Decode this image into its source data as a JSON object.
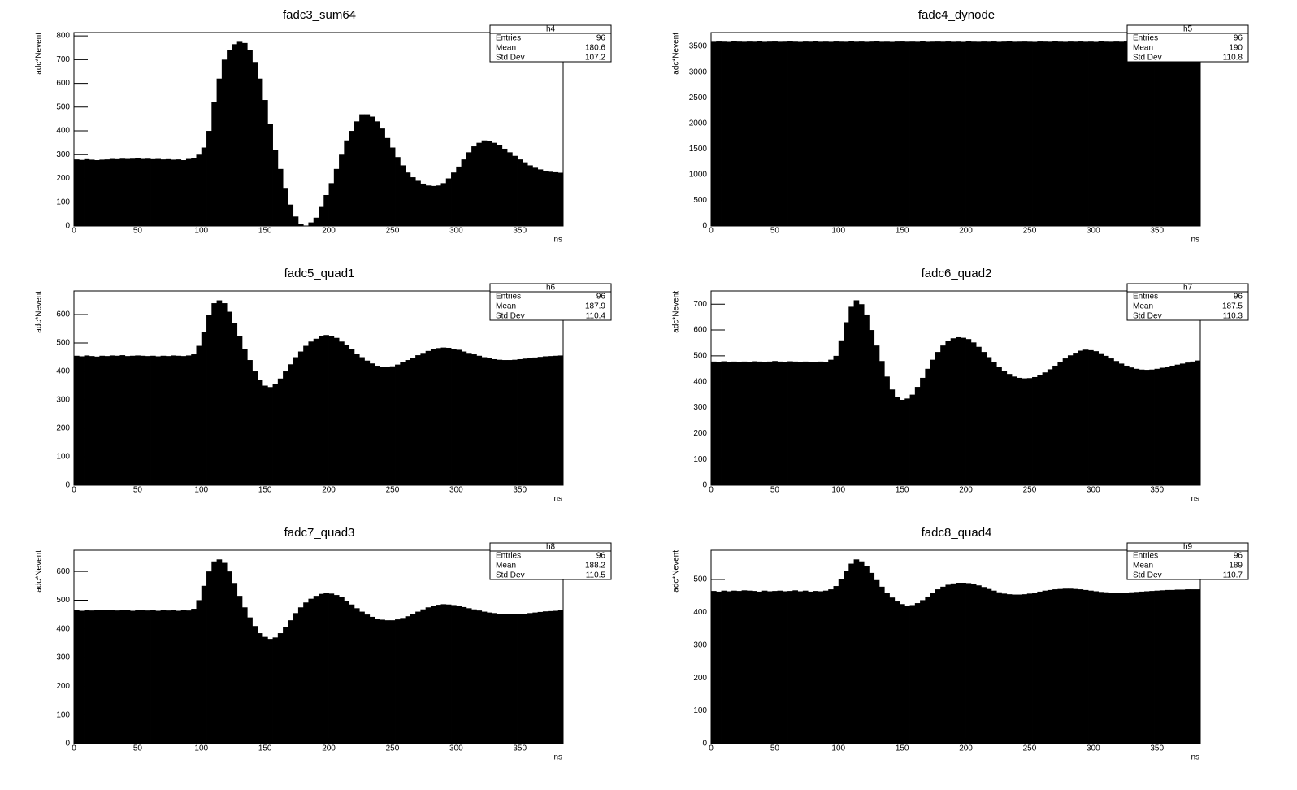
{
  "chart_data": [
    {
      "type": "histogram",
      "title": "fadc3_sum64",
      "xlabel": "ns",
      "ylabel": "adc*Nevent",
      "color": "#000000",
      "bins": [
        0,
        4,
        8,
        12,
        16,
        20,
        24,
        28,
        32,
        36,
        40,
        44,
        48,
        52,
        56,
        60,
        64,
        68,
        72,
        76,
        80,
        84,
        88,
        92,
        96,
        100,
        104,
        108,
        112,
        116,
        120,
        124,
        128,
        132,
        136,
        140,
        144,
        148,
        152,
        156,
        160,
        164,
        168,
        172,
        176,
        180,
        184,
        188,
        192,
        196,
        200,
        204,
        208,
        212,
        216,
        220,
        224,
        228,
        232,
        236,
        240,
        244,
        248,
        252,
        256,
        260,
        264,
        268,
        272,
        276,
        280,
        284,
        288,
        292,
        296,
        300,
        304,
        308,
        312,
        316,
        320,
        324,
        328,
        332,
        336,
        340,
        344,
        348,
        352,
        356,
        360,
        364,
        368,
        372,
        376,
        380,
        384
      ],
      "values": [
        280,
        278,
        281,
        279,
        277,
        279,
        280,
        282,
        281,
        283,
        282,
        283,
        284,
        282,
        283,
        281,
        282,
        280,
        281,
        279,
        280,
        277,
        282,
        285,
        300,
        330,
        400,
        520,
        620,
        700,
        740,
        765,
        775,
        770,
        740,
        690,
        620,
        530,
        430,
        320,
        240,
        160,
        90,
        40,
        10,
        0,
        15,
        35,
        80,
        130,
        180,
        240,
        300,
        360,
        400,
        440,
        470,
        470,
        460,
        440,
        410,
        370,
        330,
        290,
        255,
        225,
        205,
        190,
        178,
        170,
        168,
        170,
        180,
        200,
        225,
        250,
        280,
        310,
        335,
        350,
        360,
        358,
        350,
        340,
        325,
        310,
        295,
        280,
        268,
        255,
        245,
        238,
        232,
        228,
        226,
        224
      ],
      "xlim": [
        0,
        384
      ],
      "xticks": [
        0,
        50,
        100,
        150,
        200,
        250,
        300,
        350
      ],
      "ylim": [
        0,
        814
      ],
      "yticks": [
        0,
        100,
        200,
        300,
        400,
        500,
        600,
        700,
        800
      ],
      "stats": {
        "title": "h4",
        "labels": [
          "Entries",
          "Mean",
          "Std Dev"
        ],
        "values": [
          96,
          180.6,
          107.2
        ]
      }
    },
    {
      "type": "histogram",
      "title": "fadc4_dynode",
      "xlabel": "ns",
      "ylabel": "adc*Nevent",
      "color": "#000000",
      "bins": [
        0,
        4,
        8,
        12,
        16,
        20,
        24,
        28,
        32,
        36,
        40,
        44,
        48,
        52,
        56,
        60,
        64,
        68,
        72,
        76,
        80,
        84,
        88,
        92,
        96,
        100,
        104,
        108,
        112,
        116,
        120,
        124,
        128,
        132,
        136,
        140,
        144,
        148,
        152,
        156,
        160,
        164,
        168,
        172,
        176,
        180,
        184,
        188,
        192,
        196,
        200,
        204,
        208,
        212,
        216,
        220,
        224,
        228,
        232,
        236,
        240,
        244,
        248,
        252,
        256,
        260,
        264,
        268,
        272,
        276,
        280,
        284,
        288,
        292,
        296,
        300,
        304,
        308,
        312,
        316,
        320,
        324,
        328,
        332,
        336,
        340,
        344,
        348,
        352,
        356,
        360,
        364,
        368,
        372,
        376,
        380,
        384
      ],
      "values": [
        3590,
        3595,
        3592,
        3588,
        3596,
        3593,
        3590,
        3594,
        3591,
        3597,
        3589,
        3593,
        3595,
        3590,
        3592,
        3596,
        3592,
        3588,
        3594,
        3591,
        3596,
        3590,
        3593,
        3589,
        3595,
        3592,
        3590,
        3596,
        3591,
        3594,
        3589,
        3593,
        3596,
        3590,
        3592,
        3588,
        3594,
        3595,
        3591,
        3593,
        3590,
        3596,
        3589,
        3592,
        3594,
        3591,
        3595,
        3590,
        3593,
        3588,
        3596,
        3592,
        3590,
        3594,
        3591,
        3595,
        3589,
        3593,
        3596,
        3590,
        3592,
        3594,
        3591,
        3588,
        3595,
        3593,
        3590,
        3596,
        3592,
        3589,
        3594,
        3591,
        3595,
        3590,
        3593,
        3588,
        3596,
        3592,
        3590,
        3594,
        3591,
        3595,
        3589,
        3593,
        3596,
        3590,
        3592,
        3594,
        3591,
        3588,
        3595,
        3593,
        3590,
        3596,
        3592,
        3591
      ],
      "xlim": [
        0,
        384
      ],
      "xticks": [
        0,
        50,
        100,
        150,
        200,
        250,
        300,
        350
      ],
      "ylim": [
        0,
        3770
      ],
      "yticks": [
        0,
        500,
        1000,
        1500,
        2000,
        2500,
        3000,
        3500
      ],
      "stats": {
        "title": "h5",
        "labels": [
          "Entries",
          "Mean",
          "Std Dev"
        ],
        "values": [
          96,
          190,
          110.8
        ]
      }
    },
    {
      "type": "histogram",
      "title": "fadc5_quad1",
      "xlabel": "ns",
      "ylabel": "adc*Nevent",
      "color": "#000000",
      "bins": [
        0,
        4,
        8,
        12,
        16,
        20,
        24,
        28,
        32,
        36,
        40,
        44,
        48,
        52,
        56,
        60,
        64,
        68,
        72,
        76,
        80,
        84,
        88,
        92,
        96,
        100,
        104,
        108,
        112,
        116,
        120,
        124,
        128,
        132,
        136,
        140,
        144,
        148,
        152,
        156,
        160,
        164,
        168,
        172,
        176,
        180,
        184,
        188,
        192,
        196,
        200,
        204,
        208,
        212,
        216,
        220,
        224,
        228,
        232,
        236,
        240,
        244,
        248,
        252,
        256,
        260,
        264,
        268,
        272,
        276,
        280,
        284,
        288,
        292,
        296,
        300,
        304,
        308,
        312,
        316,
        320,
        324,
        328,
        332,
        336,
        340,
        344,
        348,
        352,
        356,
        360,
        364,
        368,
        372,
        376,
        380,
        384
      ],
      "values": [
        455,
        453,
        456,
        454,
        452,
        455,
        454,
        456,
        455,
        457,
        454,
        455,
        456,
        455,
        454,
        455,
        453,
        455,
        454,
        456,
        455,
        454,
        456,
        460,
        490,
        540,
        600,
        640,
        650,
        640,
        610,
        570,
        525,
        480,
        440,
        400,
        370,
        350,
        345,
        355,
        375,
        400,
        425,
        450,
        470,
        490,
        505,
        515,
        525,
        528,
        525,
        518,
        505,
        492,
        478,
        462,
        450,
        438,
        428,
        420,
        416,
        415,
        418,
        424,
        432,
        440,
        448,
        457,
        465,
        472,
        478,
        482,
        484,
        483,
        480,
        476,
        470,
        465,
        460,
        455,
        450,
        446,
        443,
        441,
        440,
        440,
        441,
        443,
        445,
        447,
        449,
        451,
        453,
        454,
        455,
        456
      ],
      "xlim": [
        0,
        384
      ],
      "xticks": [
        0,
        50,
        100,
        150,
        200,
        250,
        300,
        350
      ],
      "ylim": [
        0,
        683
      ],
      "yticks": [
        0,
        100,
        200,
        300,
        400,
        500,
        600
      ],
      "stats": {
        "title": "h6",
        "labels": [
          "Entries",
          "Mean",
          "Std Dev"
        ],
        "values": [
          96,
          187.9,
          110.4
        ]
      }
    },
    {
      "type": "histogram",
      "title": "fadc6_quad2",
      "xlabel": "ns",
      "ylabel": "adc*Nevent",
      "color": "#000000",
      "bins": [
        0,
        4,
        8,
        12,
        16,
        20,
        24,
        28,
        32,
        36,
        40,
        44,
        48,
        52,
        56,
        60,
        64,
        68,
        72,
        76,
        80,
        84,
        88,
        92,
        96,
        100,
        104,
        108,
        112,
        116,
        120,
        124,
        128,
        132,
        136,
        140,
        144,
        148,
        152,
        156,
        160,
        164,
        168,
        172,
        176,
        180,
        184,
        188,
        192,
        196,
        200,
        204,
        208,
        212,
        216,
        220,
        224,
        228,
        232,
        236,
        240,
        244,
        248,
        252,
        256,
        260,
        264,
        268,
        272,
        276,
        280,
        284,
        288,
        292,
        296,
        300,
        304,
        308,
        312,
        316,
        320,
        324,
        328,
        332,
        336,
        340,
        344,
        348,
        352,
        356,
        360,
        364,
        368,
        372,
        376,
        380,
        384
      ],
      "values": [
        478,
        476,
        479,
        477,
        478,
        476,
        478,
        477,
        479,
        478,
        477,
        478,
        480,
        478,
        477,
        479,
        478,
        476,
        478,
        477,
        475,
        478,
        476,
        485,
        500,
        560,
        630,
        690,
        715,
        700,
        660,
        600,
        540,
        480,
        420,
        370,
        340,
        330,
        335,
        350,
        380,
        415,
        450,
        485,
        515,
        540,
        558,
        568,
        572,
        570,
        565,
        552,
        535,
        515,
        495,
        475,
        458,
        442,
        430,
        420,
        415,
        413,
        414,
        418,
        426,
        436,
        448,
        462,
        476,
        490,
        502,
        512,
        520,
        524,
        522,
        518,
        510,
        500,
        490,
        480,
        470,
        462,
        455,
        450,
        447,
        446,
        447,
        450,
        454,
        458,
        462,
        466,
        470,
        474,
        478,
        482
      ],
      "xlim": [
        0,
        384
      ],
      "xticks": [
        0,
        50,
        100,
        150,
        200,
        250,
        300,
        350
      ],
      "ylim": [
        0,
        751
      ],
      "yticks": [
        0,
        100,
        200,
        300,
        400,
        500,
        600,
        700
      ],
      "stats": {
        "title": "h7",
        "labels": [
          "Entries",
          "Mean",
          "Std Dev"
        ],
        "values": [
          96,
          187.5,
          110.3
        ]
      }
    },
    {
      "type": "histogram",
      "title": "fadc7_quad3",
      "xlabel": "ns",
      "ylabel": "adc*Nevent",
      "color": "#000000",
      "bins": [
        0,
        4,
        8,
        12,
        16,
        20,
        24,
        28,
        32,
        36,
        40,
        44,
        48,
        52,
        56,
        60,
        64,
        68,
        72,
        76,
        80,
        84,
        88,
        92,
        96,
        100,
        104,
        108,
        112,
        116,
        120,
        124,
        128,
        132,
        136,
        140,
        144,
        148,
        152,
        156,
        160,
        164,
        168,
        172,
        176,
        180,
        184,
        188,
        192,
        196,
        200,
        204,
        208,
        212,
        216,
        220,
        224,
        228,
        232,
        236,
        240,
        244,
        248,
        252,
        256,
        260,
        264,
        268,
        272,
        276,
        280,
        284,
        288,
        292,
        296,
        300,
        304,
        308,
        312,
        316,
        320,
        324,
        328,
        332,
        336,
        340,
        344,
        348,
        352,
        356,
        360,
        364,
        368,
        372,
        376,
        380,
        384
      ],
      "values": [
        465,
        463,
        466,
        464,
        465,
        467,
        466,
        465,
        464,
        466,
        465,
        463,
        465,
        466,
        464,
        465,
        463,
        466,
        464,
        465,
        463,
        466,
        464,
        470,
        500,
        550,
        600,
        635,
        642,
        630,
        600,
        560,
        515,
        475,
        440,
        410,
        385,
        372,
        365,
        370,
        385,
        405,
        430,
        455,
        475,
        492,
        505,
        515,
        522,
        525,
        523,
        518,
        510,
        498,
        485,
        472,
        460,
        450,
        442,
        436,
        432,
        430,
        430,
        433,
        438,
        444,
        452,
        460,
        468,
        475,
        480,
        484,
        486,
        485,
        483,
        480,
        476,
        472,
        468,
        464,
        460,
        457,
        455,
        453,
        452,
        451,
        451,
        452,
        453,
        455,
        457,
        459,
        461,
        462,
        463,
        465
      ],
      "xlim": [
        0,
        384
      ],
      "xticks": [
        0,
        50,
        100,
        150,
        200,
        250,
        300,
        350
      ],
      "ylim": [
        0,
        674
      ],
      "yticks": [
        0,
        100,
        200,
        300,
        400,
        500,
        600
      ],
      "stats": {
        "title": "h8",
        "labels": [
          "Entries",
          "Mean",
          "Std Dev"
        ],
        "values": [
          96,
          188.2,
          110.5
        ]
      }
    },
    {
      "type": "histogram",
      "title": "fadc8_quad4",
      "xlabel": "ns",
      "ylabel": "adc*Nevent",
      "color": "#000000",
      "bins": [
        0,
        4,
        8,
        12,
        16,
        20,
        24,
        28,
        32,
        36,
        40,
        44,
        48,
        52,
        56,
        60,
        64,
        68,
        72,
        76,
        80,
        84,
        88,
        92,
        96,
        100,
        104,
        108,
        112,
        116,
        120,
        124,
        128,
        132,
        136,
        140,
        144,
        148,
        152,
        156,
        160,
        164,
        168,
        172,
        176,
        180,
        184,
        188,
        192,
        196,
        200,
        204,
        208,
        212,
        216,
        220,
        224,
        228,
        232,
        236,
        240,
        244,
        248,
        252,
        256,
        260,
        264,
        268,
        272,
        276,
        280,
        284,
        288,
        292,
        296,
        300,
        304,
        308,
        312,
        316,
        320,
        324,
        328,
        332,
        336,
        340,
        344,
        348,
        352,
        356,
        360,
        364,
        368,
        372,
        376,
        380,
        384
      ],
      "values": [
        465,
        463,
        466,
        464,
        466,
        465,
        467,
        466,
        465,
        463,
        466,
        464,
        465,
        466,
        464,
        465,
        467,
        464,
        466,
        463,
        465,
        464,
        466,
        470,
        480,
        500,
        525,
        548,
        561,
        555,
        540,
        520,
        498,
        478,
        460,
        445,
        433,
        425,
        420,
        422,
        428,
        437,
        448,
        460,
        470,
        478,
        484,
        488,
        490,
        490,
        489,
        486,
        482,
        477,
        471,
        466,
        461,
        457,
        455,
        454,
        454,
        455,
        457,
        460,
        463,
        466,
        468,
        470,
        471,
        472,
        472,
        471,
        470,
        468,
        466,
        464,
        462,
        461,
        460,
        460,
        460,
        460,
        461,
        462,
        463,
        464,
        465,
        466,
        467,
        468,
        468,
        469,
        469,
        470,
        470,
        470
      ],
      "xlim": [
        0,
        384
      ],
      "xticks": [
        0,
        50,
        100,
        150,
        200,
        250,
        300,
        350
      ],
      "ylim": [
        0,
        589
      ],
      "yticks": [
        0,
        100,
        200,
        300,
        400,
        500
      ],
      "stats": {
        "title": "h9",
        "labels": [
          "Entries",
          "Mean",
          "Std Dev"
        ],
        "values": [
          96,
          189,
          110.7
        ]
      }
    }
  ]
}
